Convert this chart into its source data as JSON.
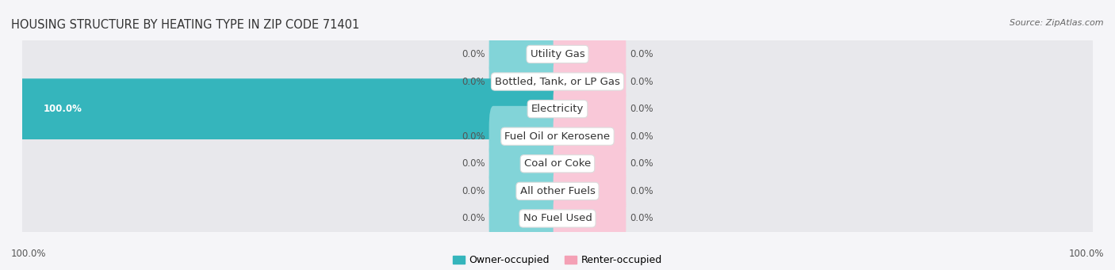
{
  "title": "Housing Structure by Heating Type in Zip Code 71401",
  "source": "Source: ZipAtlas.com",
  "categories": [
    "Utility Gas",
    "Bottled, Tank, or LP Gas",
    "Electricity",
    "Fuel Oil or Kerosene",
    "Coal or Coke",
    "All other Fuels",
    "No Fuel Used"
  ],
  "owner_values": [
    0.0,
    0.0,
    100.0,
    0.0,
    0.0,
    0.0,
    0.0
  ],
  "renter_values": [
    0.0,
    0.0,
    0.0,
    0.0,
    0.0,
    0.0,
    0.0
  ],
  "owner_color": "#35b5bc",
  "renter_color": "#f4a0b5",
  "owner_stub_color": "#82d4d8",
  "renter_stub_color": "#f9c8d8",
  "row_bg_color": "#e8e8ec",
  "bg_color": "#f5f5f8",
  "owner_label": "Owner-occupied",
  "renter_label": "Renter-occupied",
  "axis_label_left": "100.0%",
  "axis_label_right": "100.0%",
  "max_val": 100.0,
  "stub_val": 12.0,
  "bar_height": 0.62,
  "label_fontsize": 8.5,
  "title_fontsize": 10.5,
  "category_fontsize": 9.5,
  "source_fontsize": 8
}
